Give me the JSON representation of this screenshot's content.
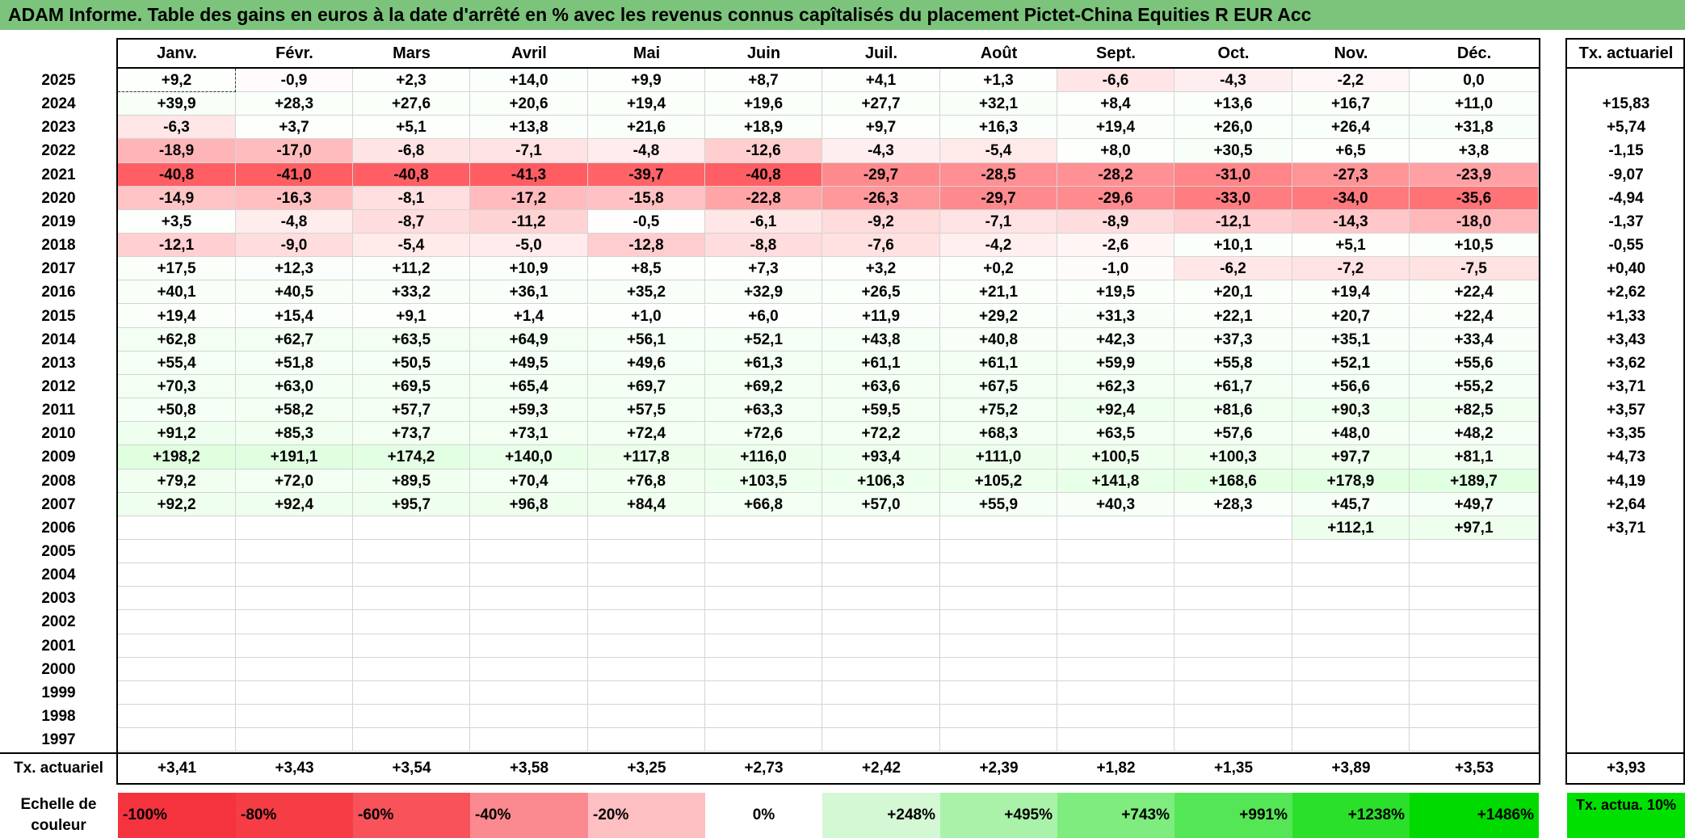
{
  "title": "ADAM Informe. Table des gains en euros à la date d'arrêté en % avec les revenus connus capîtalisés du placement Pictet-China Equities R EUR Acc",
  "months": [
    "Janv.",
    "Févr.",
    "Mars",
    "Avril",
    "Mai",
    "Juin",
    "Juil.",
    "Août",
    "Sept.",
    "Oct.",
    "Nov.",
    "Déc."
  ],
  "actuarial_header": "Tx. actuariel",
  "rows": [
    {
      "year": "2025",
      "values": [
        "+9,2",
        "-0,9",
        "+2,3",
        "+14,0",
        "+9,9",
        "+8,7",
        "+4,1",
        "+1,3",
        "-6,6",
        "-4,3",
        "-2,2",
        "0,0"
      ],
      "actuarial": ""
    },
    {
      "year": "2024",
      "values": [
        "+39,9",
        "+28,3",
        "+27,6",
        "+20,6",
        "+19,4",
        "+19,6",
        "+27,7",
        "+32,1",
        "+8,4",
        "+13,6",
        "+16,7",
        "+11,0"
      ],
      "actuarial": "+15,83"
    },
    {
      "year": "2023",
      "values": [
        "-6,3",
        "+3,7",
        "+5,1",
        "+13,8",
        "+21,6",
        "+18,9",
        "+9,7",
        "+16,3",
        "+19,4",
        "+26,0",
        "+26,4",
        "+31,8"
      ],
      "actuarial": "+5,74"
    },
    {
      "year": "2022",
      "values": [
        "-18,9",
        "-17,0",
        "-6,8",
        "-7,1",
        "-4,8",
        "-12,6",
        "-4,3",
        "-5,4",
        "+8,0",
        "+30,5",
        "+6,5",
        "+3,8"
      ],
      "actuarial": "-1,15"
    },
    {
      "year": "2021",
      "values": [
        "-40,8",
        "-41,0",
        "-40,8",
        "-41,3",
        "-39,7",
        "-40,8",
        "-29,7",
        "-28,5",
        "-28,2",
        "-31,0",
        "-27,3",
        "-23,9"
      ],
      "actuarial": "-9,07"
    },
    {
      "year": "2020",
      "values": [
        "-14,9",
        "-16,3",
        "-8,1",
        "-17,2",
        "-15,8",
        "-22,8",
        "-26,3",
        "-29,7",
        "-29,6",
        "-33,0",
        "-34,0",
        "-35,6"
      ],
      "actuarial": "-4,94"
    },
    {
      "year": "2019",
      "values": [
        "+3,5",
        "-4,8",
        "-8,7",
        "-11,2",
        "-0,5",
        "-6,1",
        "-9,2",
        "-7,1",
        "-8,9",
        "-12,1",
        "-14,3",
        "-18,0"
      ],
      "actuarial": "-1,37"
    },
    {
      "year": "2018",
      "values": [
        "-12,1",
        "-9,0",
        "-5,4",
        "-5,0",
        "-12,8",
        "-8,8",
        "-7,6",
        "-4,2",
        "-2,6",
        "+10,1",
        "+5,1",
        "+10,5"
      ],
      "actuarial": "-0,55"
    },
    {
      "year": "2017",
      "values": [
        "+17,5",
        "+12,3",
        "+11,2",
        "+10,9",
        "+8,5",
        "+7,3",
        "+3,2",
        "+0,2",
        "-1,0",
        "-6,2",
        "-7,2",
        "-7,5"
      ],
      "actuarial": "+0,40"
    },
    {
      "year": "2016",
      "values": [
        "+40,1",
        "+40,5",
        "+33,2",
        "+36,1",
        "+35,2",
        "+32,9",
        "+26,5",
        "+21,1",
        "+19,5",
        "+20,1",
        "+19,4",
        "+22,4"
      ],
      "actuarial": "+2,62"
    },
    {
      "year": "2015",
      "values": [
        "+19,4",
        "+15,4",
        "+9,1",
        "+1,4",
        "+1,0",
        "+6,0",
        "+11,9",
        "+29,2",
        "+31,3",
        "+22,1",
        "+20,7",
        "+22,4"
      ],
      "actuarial": "+1,33"
    },
    {
      "year": "2014",
      "values": [
        "+62,8",
        "+62,7",
        "+63,5",
        "+64,9",
        "+56,1",
        "+52,1",
        "+43,8",
        "+40,8",
        "+42,3",
        "+37,3",
        "+35,1",
        "+33,4"
      ],
      "actuarial": "+3,43"
    },
    {
      "year": "2013",
      "values": [
        "+55,4",
        "+51,8",
        "+50,5",
        "+49,5",
        "+49,6",
        "+61,3",
        "+61,1",
        "+61,1",
        "+59,9",
        "+55,8",
        "+52,1",
        "+55,6"
      ],
      "actuarial": "+3,62"
    },
    {
      "year": "2012",
      "values": [
        "+70,3",
        "+63,0",
        "+69,5",
        "+65,4",
        "+69,7",
        "+69,2",
        "+63,6",
        "+67,5",
        "+62,3",
        "+61,7",
        "+56,6",
        "+55,2"
      ],
      "actuarial": "+3,71"
    },
    {
      "year": "2011",
      "values": [
        "+50,8",
        "+58,2",
        "+57,7",
        "+59,3",
        "+57,5",
        "+63,3",
        "+59,5",
        "+75,2",
        "+92,4",
        "+81,6",
        "+90,3",
        "+82,5"
      ],
      "actuarial": "+3,57"
    },
    {
      "year": "2010",
      "values": [
        "+91,2",
        "+85,3",
        "+73,7",
        "+73,1",
        "+72,4",
        "+72,6",
        "+72,2",
        "+68,3",
        "+63,5",
        "+57,6",
        "+48,0",
        "+48,2"
      ],
      "actuarial": "+3,35"
    },
    {
      "year": "2009",
      "values": [
        "+198,2",
        "+191,1",
        "+174,2",
        "+140,0",
        "+117,8",
        "+116,0",
        "+93,4",
        "+111,0",
        "+100,5",
        "+100,3",
        "+97,7",
        "+81,1"
      ],
      "actuarial": "+4,73"
    },
    {
      "year": "2008",
      "values": [
        "+79,2",
        "+72,0",
        "+89,5",
        "+70,4",
        "+76,8",
        "+103,5",
        "+106,3",
        "+105,2",
        "+141,8",
        "+168,6",
        "+178,9",
        "+189,7"
      ],
      "actuarial": "+4,19"
    },
    {
      "year": "2007",
      "values": [
        "+92,2",
        "+92,4",
        "+95,7",
        "+96,8",
        "+84,4",
        "+66,8",
        "+57,0",
        "+55,9",
        "+40,3",
        "+28,3",
        "+45,7",
        "+49,7"
      ],
      "actuarial": "+2,64"
    },
    {
      "year": "2006",
      "values": [
        "",
        "",
        "",
        "",
        "",
        "",
        "",
        "",
        "",
        "",
        "+112,1",
        "+97,1"
      ],
      "actuarial": "+3,71"
    },
    {
      "year": "2005",
      "values": [
        "",
        "",
        "",
        "",
        "",
        "",
        "",
        "",
        "",
        "",
        "",
        ""
      ],
      "actuarial": ""
    },
    {
      "year": "2004",
      "values": [
        "",
        "",
        "",
        "",
        "",
        "",
        "",
        "",
        "",
        "",
        "",
        ""
      ],
      "actuarial": ""
    },
    {
      "year": "2003",
      "values": [
        "",
        "",
        "",
        "",
        "",
        "",
        "",
        "",
        "",
        "",
        "",
        ""
      ],
      "actuarial": ""
    },
    {
      "year": "2002",
      "values": [
        "",
        "",
        "",
        "",
        "",
        "",
        "",
        "",
        "",
        "",
        "",
        ""
      ],
      "actuarial": ""
    },
    {
      "year": "2001",
      "values": [
        "",
        "",
        "",
        "",
        "",
        "",
        "",
        "",
        "",
        "",
        "",
        ""
      ],
      "actuarial": ""
    },
    {
      "year": "2000",
      "values": [
        "",
        "",
        "",
        "",
        "",
        "",
        "",
        "",
        "",
        "",
        "",
        ""
      ],
      "actuarial": ""
    },
    {
      "year": "1999",
      "values": [
        "",
        "",
        "",
        "",
        "",
        "",
        "",
        "",
        "",
        "",
        "",
        ""
      ],
      "actuarial": ""
    },
    {
      "year": "1998",
      "values": [
        "",
        "",
        "",
        "",
        "",
        "",
        "",
        "",
        "",
        "",
        "",
        ""
      ],
      "actuarial": ""
    },
    {
      "year": "1997",
      "values": [
        "",
        "",
        "",
        "",
        "",
        "",
        "",
        "",
        "",
        "",
        "",
        ""
      ],
      "actuarial": ""
    }
  ],
  "average_row": {
    "label": "Tx. actuariel",
    "values": [
      "+3,41",
      "+3,43",
      "+3,54",
      "+3,58",
      "+3,25",
      "+2,73",
      "+2,42",
      "+2,39",
      "+1,82",
      "+1,35",
      "+3,89",
      "+3,53"
    ],
    "total": "+3,93"
  },
  "color_scale": {
    "label": "Echelle de couleur",
    "steps": [
      {
        "label": "-100%",
        "color": "#f5333f",
        "align": "left"
      },
      {
        "label": "-80%",
        "color": "#f63d45",
        "align": "left"
      },
      {
        "label": "-60%",
        "color": "#f8525a",
        "align": "left"
      },
      {
        "label": "-40%",
        "color": "#fa8a8f",
        "align": "left"
      },
      {
        "label": "-20%",
        "color": "#fdbfc2",
        "align": "left"
      },
      {
        "label": "0%",
        "color": "#ffffff",
        "align": "center"
      },
      {
        "label": "+248%",
        "color": "#d4f7d4",
        "align": "right"
      },
      {
        "label": "+495%",
        "color": "#aaf2aa",
        "align": "right"
      },
      {
        "label": "+743%",
        "color": "#7fec7f",
        "align": "right"
      },
      {
        "label": "+991%",
        "color": "#55e655",
        "align": "right"
      },
      {
        "label": "+1238%",
        "color": "#2be02b",
        "align": "right"
      },
      {
        "label": "+1486%",
        "color": "#00da00",
        "align": "right"
      }
    ],
    "right_label": "Tx. actua. 10%",
    "right_color": "#00e000"
  }
}
